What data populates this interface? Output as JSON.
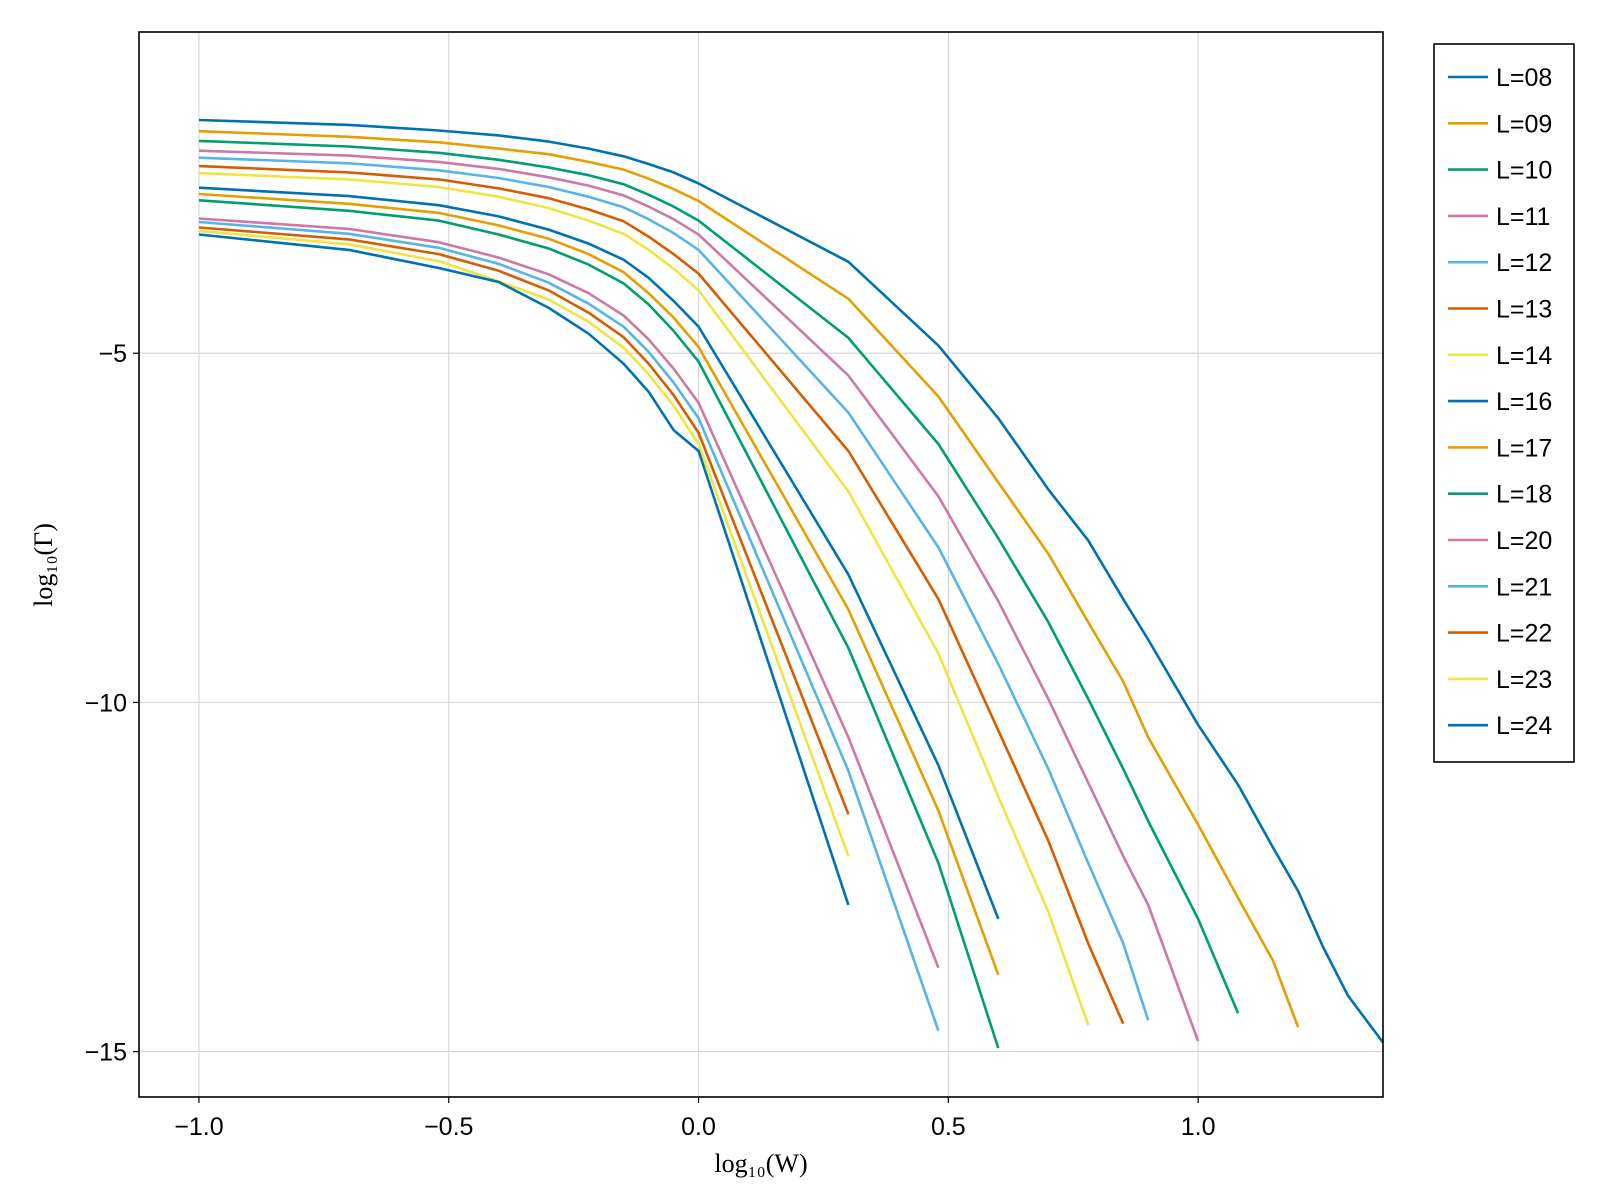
{
  "chart_data": {
    "type": "line",
    "xlabel": "log₁₀(W)",
    "ylabel": "log₁₀(Γ)",
    "xlim": [
      -1.12,
      1.37
    ],
    "ylim": [
      -15.65,
      -0.4
    ],
    "x_ticks": [
      {
        "v": -1.0,
        "label": "−1.0"
      },
      {
        "v": -0.5,
        "label": "−0.5"
      },
      {
        "v": 0.0,
        "label": "0.0"
      },
      {
        "v": 0.5,
        "label": "0.5"
      },
      {
        "v": 1.0,
        "label": "1.0"
      }
    ],
    "y_ticks": [
      {
        "v": -5,
        "label": "−5"
      },
      {
        "v": -10,
        "label": "−10"
      },
      {
        "v": -15,
        "label": "−15"
      }
    ],
    "grid": true,
    "legend_position": "right",
    "series": [
      {
        "name": "L=08",
        "color": "#0072b2",
        "points": [
          [
            -1.0,
            -1.66
          ],
          [
            -0.7,
            -1.73
          ],
          [
            -0.52,
            -1.81
          ],
          [
            -0.4,
            -1.88
          ],
          [
            -0.3,
            -1.97
          ],
          [
            -0.22,
            -2.07
          ],
          [
            -0.15,
            -2.18
          ],
          [
            -0.1,
            -2.29
          ],
          [
            -0.05,
            -2.41
          ],
          [
            0.0,
            -2.57
          ],
          [
            0.3,
            -3.69
          ],
          [
            0.48,
            -4.89
          ],
          [
            0.6,
            -5.93
          ],
          [
            0.7,
            -6.95
          ],
          [
            0.78,
            -7.68
          ],
          [
            0.85,
            -8.52
          ],
          [
            0.9,
            -9.1
          ],
          [
            1.0,
            -10.32
          ],
          [
            1.08,
            -11.18
          ],
          [
            1.15,
            -12.08
          ],
          [
            1.2,
            -12.7
          ],
          [
            1.25,
            -13.5
          ],
          [
            1.3,
            -14.2
          ],
          [
            1.37,
            -14.87
          ]
        ]
      },
      {
        "name": "L=09",
        "color": "#e69f00",
        "points": [
          [
            -1.0,
            -1.82
          ],
          [
            -0.7,
            -1.9
          ],
          [
            -0.52,
            -1.98
          ],
          [
            -0.4,
            -2.07
          ],
          [
            -0.3,
            -2.15
          ],
          [
            -0.22,
            -2.26
          ],
          [
            -0.15,
            -2.37
          ],
          [
            -0.1,
            -2.5
          ],
          [
            -0.05,
            -2.65
          ],
          [
            0.0,
            -2.82
          ],
          [
            0.3,
            -4.22
          ],
          [
            0.48,
            -5.62
          ],
          [
            0.6,
            -6.85
          ],
          [
            0.7,
            -7.87
          ],
          [
            0.78,
            -8.85
          ],
          [
            0.85,
            -9.7
          ],
          [
            0.9,
            -10.5
          ],
          [
            1.0,
            -11.75
          ],
          [
            1.08,
            -12.8
          ],
          [
            1.15,
            -13.7
          ],
          [
            1.2,
            -14.65
          ]
        ]
      },
      {
        "name": "L=10",
        "color": "#009e73",
        "points": [
          [
            -1.0,
            -1.96
          ],
          [
            -0.7,
            -2.04
          ],
          [
            -0.52,
            -2.13
          ],
          [
            -0.4,
            -2.23
          ],
          [
            -0.3,
            -2.34
          ],
          [
            -0.22,
            -2.45
          ],
          [
            -0.15,
            -2.58
          ],
          [
            -0.1,
            -2.73
          ],
          [
            -0.05,
            -2.9
          ],
          [
            0.0,
            -3.1
          ],
          [
            0.3,
            -4.78
          ],
          [
            0.48,
            -6.3
          ],
          [
            0.6,
            -7.65
          ],
          [
            0.7,
            -8.85
          ],
          [
            0.78,
            -9.95
          ],
          [
            0.85,
            -10.95
          ],
          [
            0.9,
            -11.7
          ],
          [
            1.0,
            -13.1
          ],
          [
            1.08,
            -14.45
          ]
        ]
      },
      {
        "name": "L=11",
        "color": "#cc79a7",
        "points": [
          [
            -1.0,
            -2.1
          ],
          [
            -0.7,
            -2.17
          ],
          [
            -0.52,
            -2.26
          ],
          [
            -0.4,
            -2.36
          ],
          [
            -0.3,
            -2.48
          ],
          [
            -0.22,
            -2.6
          ],
          [
            -0.15,
            -2.74
          ],
          [
            -0.1,
            -2.9
          ],
          [
            -0.05,
            -3.08
          ],
          [
            0.0,
            -3.3
          ],
          [
            0.3,
            -5.32
          ],
          [
            0.48,
            -7.05
          ],
          [
            0.6,
            -8.55
          ],
          [
            0.7,
            -9.95
          ],
          [
            0.78,
            -11.15
          ],
          [
            0.85,
            -12.2
          ],
          [
            0.9,
            -12.9
          ],
          [
            1.0,
            -14.85
          ]
        ]
      },
      {
        "name": "L=12",
        "color": "#56b4e9",
        "points": [
          [
            -1.0,
            -2.2
          ],
          [
            -0.7,
            -2.28
          ],
          [
            -0.52,
            -2.38
          ],
          [
            -0.4,
            -2.49
          ],
          [
            -0.3,
            -2.62
          ],
          [
            -0.22,
            -2.76
          ],
          [
            -0.15,
            -2.91
          ],
          [
            -0.1,
            -3.08
          ],
          [
            -0.05,
            -3.28
          ],
          [
            0.0,
            -3.52
          ],
          [
            0.3,
            -5.85
          ],
          [
            0.48,
            -7.78
          ],
          [
            0.6,
            -9.45
          ],
          [
            0.7,
            -10.95
          ],
          [
            0.78,
            -12.3
          ],
          [
            0.85,
            -13.45
          ],
          [
            0.9,
            -14.55
          ]
        ]
      },
      {
        "name": "L=13",
        "color": "#d55e00",
        "points": [
          [
            -1.0,
            -2.32
          ],
          [
            -0.7,
            -2.41
          ],
          [
            -0.52,
            -2.51
          ],
          [
            -0.4,
            -2.64
          ],
          [
            -0.3,
            -2.78
          ],
          [
            -0.22,
            -2.94
          ],
          [
            -0.15,
            -3.11
          ],
          [
            -0.1,
            -3.33
          ],
          [
            -0.05,
            -3.58
          ],
          [
            0.0,
            -3.86
          ],
          [
            0.3,
            -6.4
          ],
          [
            0.48,
            -8.52
          ],
          [
            0.6,
            -10.4
          ],
          [
            0.7,
            -11.98
          ],
          [
            0.78,
            -13.45
          ],
          [
            0.85,
            -14.6
          ]
        ]
      },
      {
        "name": "L=14",
        "color": "#f0e442",
        "points": [
          [
            -1.0,
            -2.42
          ],
          [
            -0.7,
            -2.51
          ],
          [
            -0.52,
            -2.62
          ],
          [
            -0.4,
            -2.76
          ],
          [
            -0.3,
            -2.92
          ],
          [
            -0.22,
            -3.1
          ],
          [
            -0.15,
            -3.29
          ],
          [
            -0.1,
            -3.52
          ],
          [
            -0.05,
            -3.79
          ],
          [
            0.0,
            -4.1
          ],
          [
            0.3,
            -6.98
          ],
          [
            0.48,
            -9.3
          ],
          [
            0.6,
            -11.35
          ],
          [
            0.7,
            -13.0
          ],
          [
            0.78,
            -14.62
          ]
        ]
      },
      {
        "name": "L=16",
        "color": "#0072b2",
        "points": [
          [
            -1.0,
            -2.63
          ],
          [
            -0.7,
            -2.75
          ],
          [
            -0.52,
            -2.88
          ],
          [
            -0.4,
            -3.04
          ],
          [
            -0.3,
            -3.23
          ],
          [
            -0.22,
            -3.43
          ],
          [
            -0.15,
            -3.66
          ],
          [
            -0.1,
            -3.92
          ],
          [
            -0.05,
            -4.25
          ],
          [
            0.0,
            -4.62
          ],
          [
            0.3,
            -8.17
          ],
          [
            0.48,
            -10.9
          ],
          [
            0.6,
            -13.1
          ]
        ]
      },
      {
        "name": "L=17",
        "color": "#e69f00",
        "points": [
          [
            -1.0,
            -2.72
          ],
          [
            -0.7,
            -2.86
          ],
          [
            -0.52,
            -2.99
          ],
          [
            -0.4,
            -3.17
          ],
          [
            -0.3,
            -3.36
          ],
          [
            -0.22,
            -3.58
          ],
          [
            -0.15,
            -3.84
          ],
          [
            -0.1,
            -4.14
          ],
          [
            -0.05,
            -4.49
          ],
          [
            0.0,
            -4.91
          ],
          [
            0.3,
            -8.67
          ],
          [
            0.48,
            -11.55
          ],
          [
            0.6,
            -13.9
          ]
        ]
      },
      {
        "name": "L=18",
        "color": "#009e73",
        "points": [
          [
            -1.0,
            -2.81
          ],
          [
            -0.7,
            -2.96
          ],
          [
            -0.52,
            -3.1
          ],
          [
            -0.4,
            -3.3
          ],
          [
            -0.3,
            -3.5
          ],
          [
            -0.22,
            -3.73
          ],
          [
            -0.15,
            -4.0
          ],
          [
            -0.1,
            -4.3
          ],
          [
            -0.05,
            -4.68
          ],
          [
            0.0,
            -5.12
          ],
          [
            0.3,
            -9.22
          ],
          [
            0.48,
            -12.3
          ],
          [
            0.6,
            -14.95
          ]
        ]
      },
      {
        "name": "L=20",
        "color": "#cc79a7",
        "points": [
          [
            -1.0,
            -3.07
          ],
          [
            -0.7,
            -3.22
          ],
          [
            -0.52,
            -3.41
          ],
          [
            -0.4,
            -3.63
          ],
          [
            -0.3,
            -3.87
          ],
          [
            -0.22,
            -4.14
          ],
          [
            -0.15,
            -4.46
          ],
          [
            -0.1,
            -4.8
          ],
          [
            -0.05,
            -5.22
          ],
          [
            0.0,
            -5.71
          ],
          [
            0.3,
            -10.5
          ],
          [
            0.48,
            -13.8
          ]
        ]
      },
      {
        "name": "L=21",
        "color": "#56b4e9",
        "points": [
          [
            -1.0,
            -3.12
          ],
          [
            -0.7,
            -3.29
          ],
          [
            -0.52,
            -3.49
          ],
          [
            -0.4,
            -3.72
          ],
          [
            -0.3,
            -3.99
          ],
          [
            -0.22,
            -4.29
          ],
          [
            -0.15,
            -4.62
          ],
          [
            -0.1,
            -4.98
          ],
          [
            -0.05,
            -5.42
          ],
          [
            0.0,
            -5.93
          ],
          [
            0.3,
            -10.98
          ],
          [
            0.48,
            -14.7
          ]
        ]
      },
      {
        "name": "L=22",
        "color": "#d55e00",
        "points": [
          [
            -1.0,
            -3.2
          ],
          [
            -0.7,
            -3.37
          ],
          [
            -0.52,
            -3.58
          ],
          [
            -0.4,
            -3.82
          ],
          [
            -0.3,
            -4.1
          ],
          [
            -0.22,
            -4.42
          ],
          [
            -0.15,
            -4.77
          ],
          [
            -0.1,
            -5.15
          ],
          [
            -0.05,
            -5.6
          ],
          [
            0.0,
            -6.14
          ],
          [
            0.3,
            -11.6
          ]
        ]
      },
      {
        "name": "L=23",
        "color": "#f0e442",
        "points": [
          [
            -1.0,
            -3.25
          ],
          [
            -0.7,
            -3.44
          ],
          [
            -0.52,
            -3.68
          ],
          [
            -0.4,
            -3.97
          ],
          [
            -0.3,
            -4.23
          ],
          [
            -0.22,
            -4.55
          ],
          [
            -0.15,
            -4.92
          ],
          [
            -0.1,
            -5.3
          ],
          [
            -0.05,
            -5.75
          ],
          [
            0.0,
            -6.3
          ],
          [
            0.3,
            -12.2
          ]
        ]
      },
      {
        "name": "L=24",
        "color": "#0072b2",
        "points": [
          [
            -1.0,
            -3.3
          ],
          [
            -0.7,
            -3.52
          ],
          [
            -0.52,
            -3.78
          ],
          [
            -0.4,
            -3.98
          ],
          [
            -0.3,
            -4.35
          ],
          [
            -0.22,
            -4.72
          ],
          [
            -0.15,
            -5.15
          ],
          [
            -0.1,
            -5.55
          ],
          [
            -0.05,
            -6.1
          ],
          [
            0.0,
            -6.4
          ],
          [
            0.3,
            -12.9
          ]
        ]
      }
    ]
  }
}
